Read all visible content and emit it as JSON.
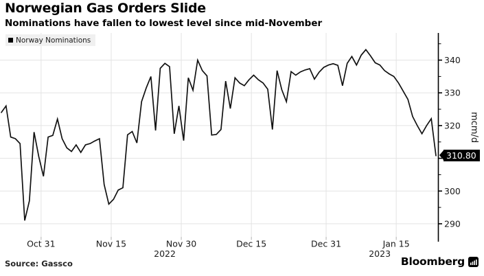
{
  "header": {
    "title": "Norwegian Gas Orders Slide",
    "subtitle": "Nominations have fallen to lowest level since mid-November"
  },
  "legend": {
    "label": "Norway Nominations",
    "swatch_color": "#000000"
  },
  "footer": {
    "source": "Source: Gassco",
    "brand": "Bloomberg"
  },
  "icons": {
    "brand_mark": "bloomberg-terminal-icon",
    "legend_marker": "black-square-swatch"
  },
  "colors": {
    "line": "#111111",
    "grid": "#e3e3e3",
    "axis": "#000000",
    "tick_stub": "#b0b0b0",
    "tag_bg": "#000000",
    "tag_text": "#ffffff",
    "legend_bg": "#f0f0f0",
    "label_text": "#1a1a1a"
  },
  "chart_data": {
    "type": "line",
    "title": "Norwegian Gas Orders Slide",
    "subtitle": "Nominations have fallen to lowest level since mid-November",
    "ylabel": "mcm/d",
    "unit": "mcm/d",
    "grid": true,
    "legend_position": "top-left",
    "ylim": [
      286,
      348.3
    ],
    "y_ticks": [
      290,
      300,
      310,
      320,
      330,
      340
    ],
    "y_minor_ticks": [
      295,
      305,
      315,
      325,
      335,
      345
    ],
    "x_ticks": [
      {
        "label": "Oct 31",
        "index": 8.5,
        "year": ""
      },
      {
        "label": "Nov 15",
        "index": 23.5,
        "year": ""
      },
      {
        "label": "Nov 30",
        "index": 38.5,
        "year": "2022"
      },
      {
        "label": "Dec 15",
        "index": 53.5,
        "year": ""
      },
      {
        "label": "Dec 31",
        "index": 69.5,
        "year": ""
      },
      {
        "label": "Jan 15",
        "index": 84.5,
        "year": "2023"
      }
    ],
    "x_range_description": "daily values, late Oct 2022 to late Jan 2023",
    "last_value": 310.8,
    "last_value_label": "310.80",
    "series": [
      {
        "name": "Norway Nominations",
        "color": "#111111",
        "values": [
          324,
          326,
          316.5,
          316,
          314.5,
          291,
          297,
          318,
          310.5,
          304.5,
          316.5,
          317,
          322,
          316,
          313.2,
          312.1,
          314.1,
          311.8,
          314.1,
          314.5,
          315.3,
          316,
          302,
          296,
          297.5,
          300.3,
          301,
          317.2,
          318.2,
          314.7,
          327.3,
          331.5,
          335,
          318.5,
          337.5,
          339,
          338,
          317.5,
          326,
          315.4,
          334.6,
          330.8,
          340,
          336.8,
          335.2,
          317.1,
          317.3,
          318.8,
          333.6,
          325.2,
          334.6,
          333,
          332.2,
          334,
          335.4,
          334,
          333,
          331.1,
          318.8,
          336.8,
          331,
          327.3,
          336.5,
          335.4,
          336.4,
          337,
          337.4,
          334.2,
          336.3,
          337.8,
          338.5,
          338.9,
          338.4,
          332.2,
          339,
          341.1,
          338.5,
          341.5,
          343.2,
          341.3,
          339.2,
          338.5,
          336.8,
          335.8,
          335,
          333,
          330.5,
          328,
          322.8,
          320,
          317.5,
          320,
          322.1,
          310.8
        ]
      }
    ]
  }
}
